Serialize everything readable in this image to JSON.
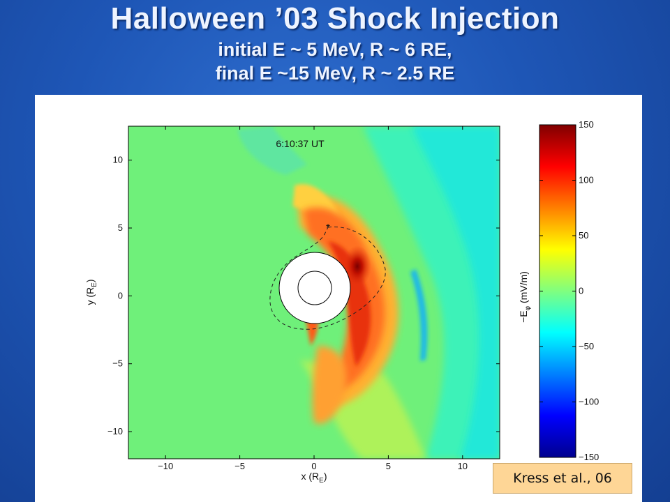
{
  "slide": {
    "title": "Halloween ’03 Shock Injection",
    "subtitle_line1": "initial  E ~ 5 MeV, R ~ 6 RE,",
    "subtitle_line2": "final E ~15 MeV,  R ~ 2.5 RE",
    "citation": "Kress et al., 06"
  },
  "chart_data": {
    "type": "heatmap",
    "annotation": "6:10:37 UT",
    "xlabel": "x (R",
    "xlabel_sub": "E",
    "ylabel": "y (R",
    "ylabel_sub": "E",
    "xlim": [
      -12.5,
      12.5
    ],
    "ylim": [
      -12,
      12.5
    ],
    "xticks": [
      -10,
      -5,
      0,
      5,
      10
    ],
    "yticks": [
      10,
      5,
      0,
      -5,
      -10
    ],
    "ytick_labels": [
      "10",
      "5",
      "0",
      "−5",
      "−10"
    ],
    "xtick_labels": [
      "−10",
      "−5",
      "0",
      "5",
      "10"
    ],
    "colorbar": {
      "label": "−E",
      "label_sub": "φ",
      "units": "(mV/m)",
      "range": [
        -150,
        150
      ],
      "ticks": [
        150,
        100,
        50,
        0,
        -50,
        -100,
        -150
      ],
      "tick_labels": [
        "150",
        "100",
        "50",
        "0",
        "−50",
        "−100",
        "−150"
      ]
    },
    "features": {
      "earth_outer_radius": 2.5,
      "earth_inner_radius": 1.2,
      "shock_injection_band_peak": 150,
      "shock_band_radius": [
        3,
        6
      ],
      "background_value": 25,
      "dawn_side_negative_stripe": -45,
      "particle_marker": {
        "x": 1.2,
        "y": 4.6,
        "symbol": "*"
      }
    }
  }
}
